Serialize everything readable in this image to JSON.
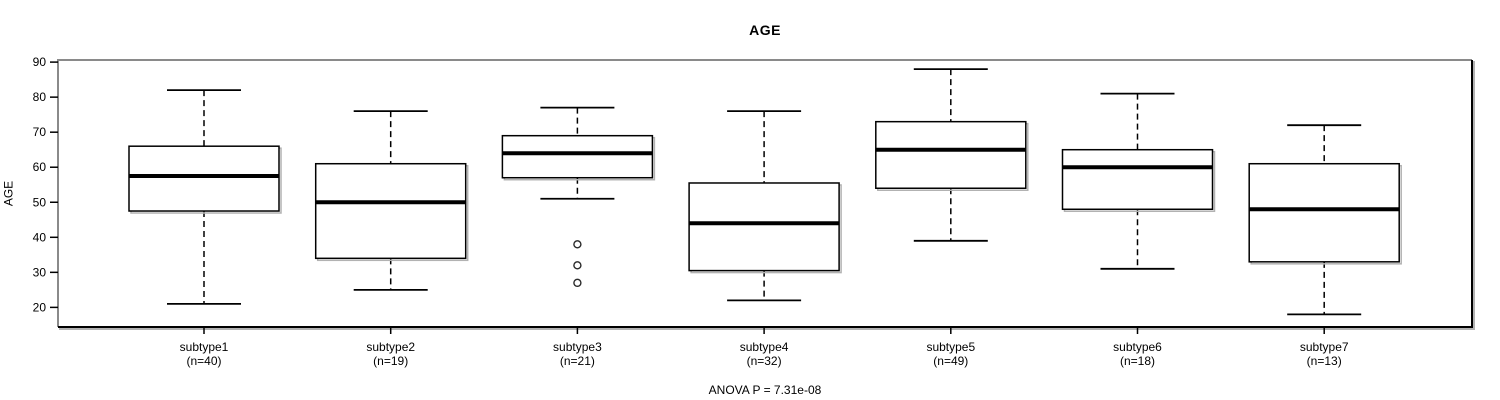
{
  "chart_data": {
    "type": "box",
    "title": "AGE",
    "ylabel": "AGE",
    "annotation": "ANOVA P = 7.31e-08",
    "ylim": [
      14.4,
      90.6
    ],
    "yticks": [
      20,
      30,
      40,
      50,
      60,
      70,
      80,
      90
    ],
    "grid": false,
    "categories": [
      "subtype1",
      "subtype2",
      "subtype3",
      "subtype4",
      "subtype5",
      "subtype6",
      "subtype7"
    ],
    "group_size_labels": [
      "(n=40)",
      "(n=19)",
      "(n=21)",
      "(n=32)",
      "(n=49)",
      "(n=18)",
      "(n=13)"
    ],
    "series": [
      {
        "name": "subtype1",
        "n": 40,
        "whisker_low": 21,
        "q1": 47.5,
        "median": 57.5,
        "q3": 66,
        "whisker_high": 82,
        "outliers": []
      },
      {
        "name": "subtype2",
        "n": 19,
        "whisker_low": 25,
        "q1": 34,
        "median": 50,
        "q3": 61,
        "whisker_high": 76,
        "outliers": []
      },
      {
        "name": "subtype3",
        "n": 21,
        "whisker_low": 51,
        "q1": 57,
        "median": 64,
        "q3": 69,
        "whisker_high": 77,
        "outliers": [
          38,
          32,
          27
        ]
      },
      {
        "name": "subtype4",
        "n": 32,
        "whisker_low": 22,
        "q1": 30.5,
        "median": 44,
        "q3": 55.5,
        "whisker_high": 76,
        "outliers": []
      },
      {
        "name": "subtype5",
        "n": 49,
        "whisker_low": 39,
        "q1": 54,
        "median": 65,
        "q3": 73,
        "whisker_high": 88,
        "outliers": []
      },
      {
        "name": "subtype6",
        "n": 18,
        "whisker_low": 31,
        "q1": 48,
        "median": 60,
        "q3": 65,
        "whisker_high": 81,
        "outliers": []
      },
      {
        "name": "subtype7",
        "n": 13,
        "whisker_low": 18,
        "q1": 33,
        "median": 48,
        "q3": 61,
        "whisker_high": 72,
        "outliers": []
      }
    ],
    "colors": {
      "line": "#000000",
      "frame_light": "#8a8a8a",
      "shadow": "#b2b2b2",
      "box_fill": "#ffffff",
      "background": "#ffffff"
    }
  }
}
